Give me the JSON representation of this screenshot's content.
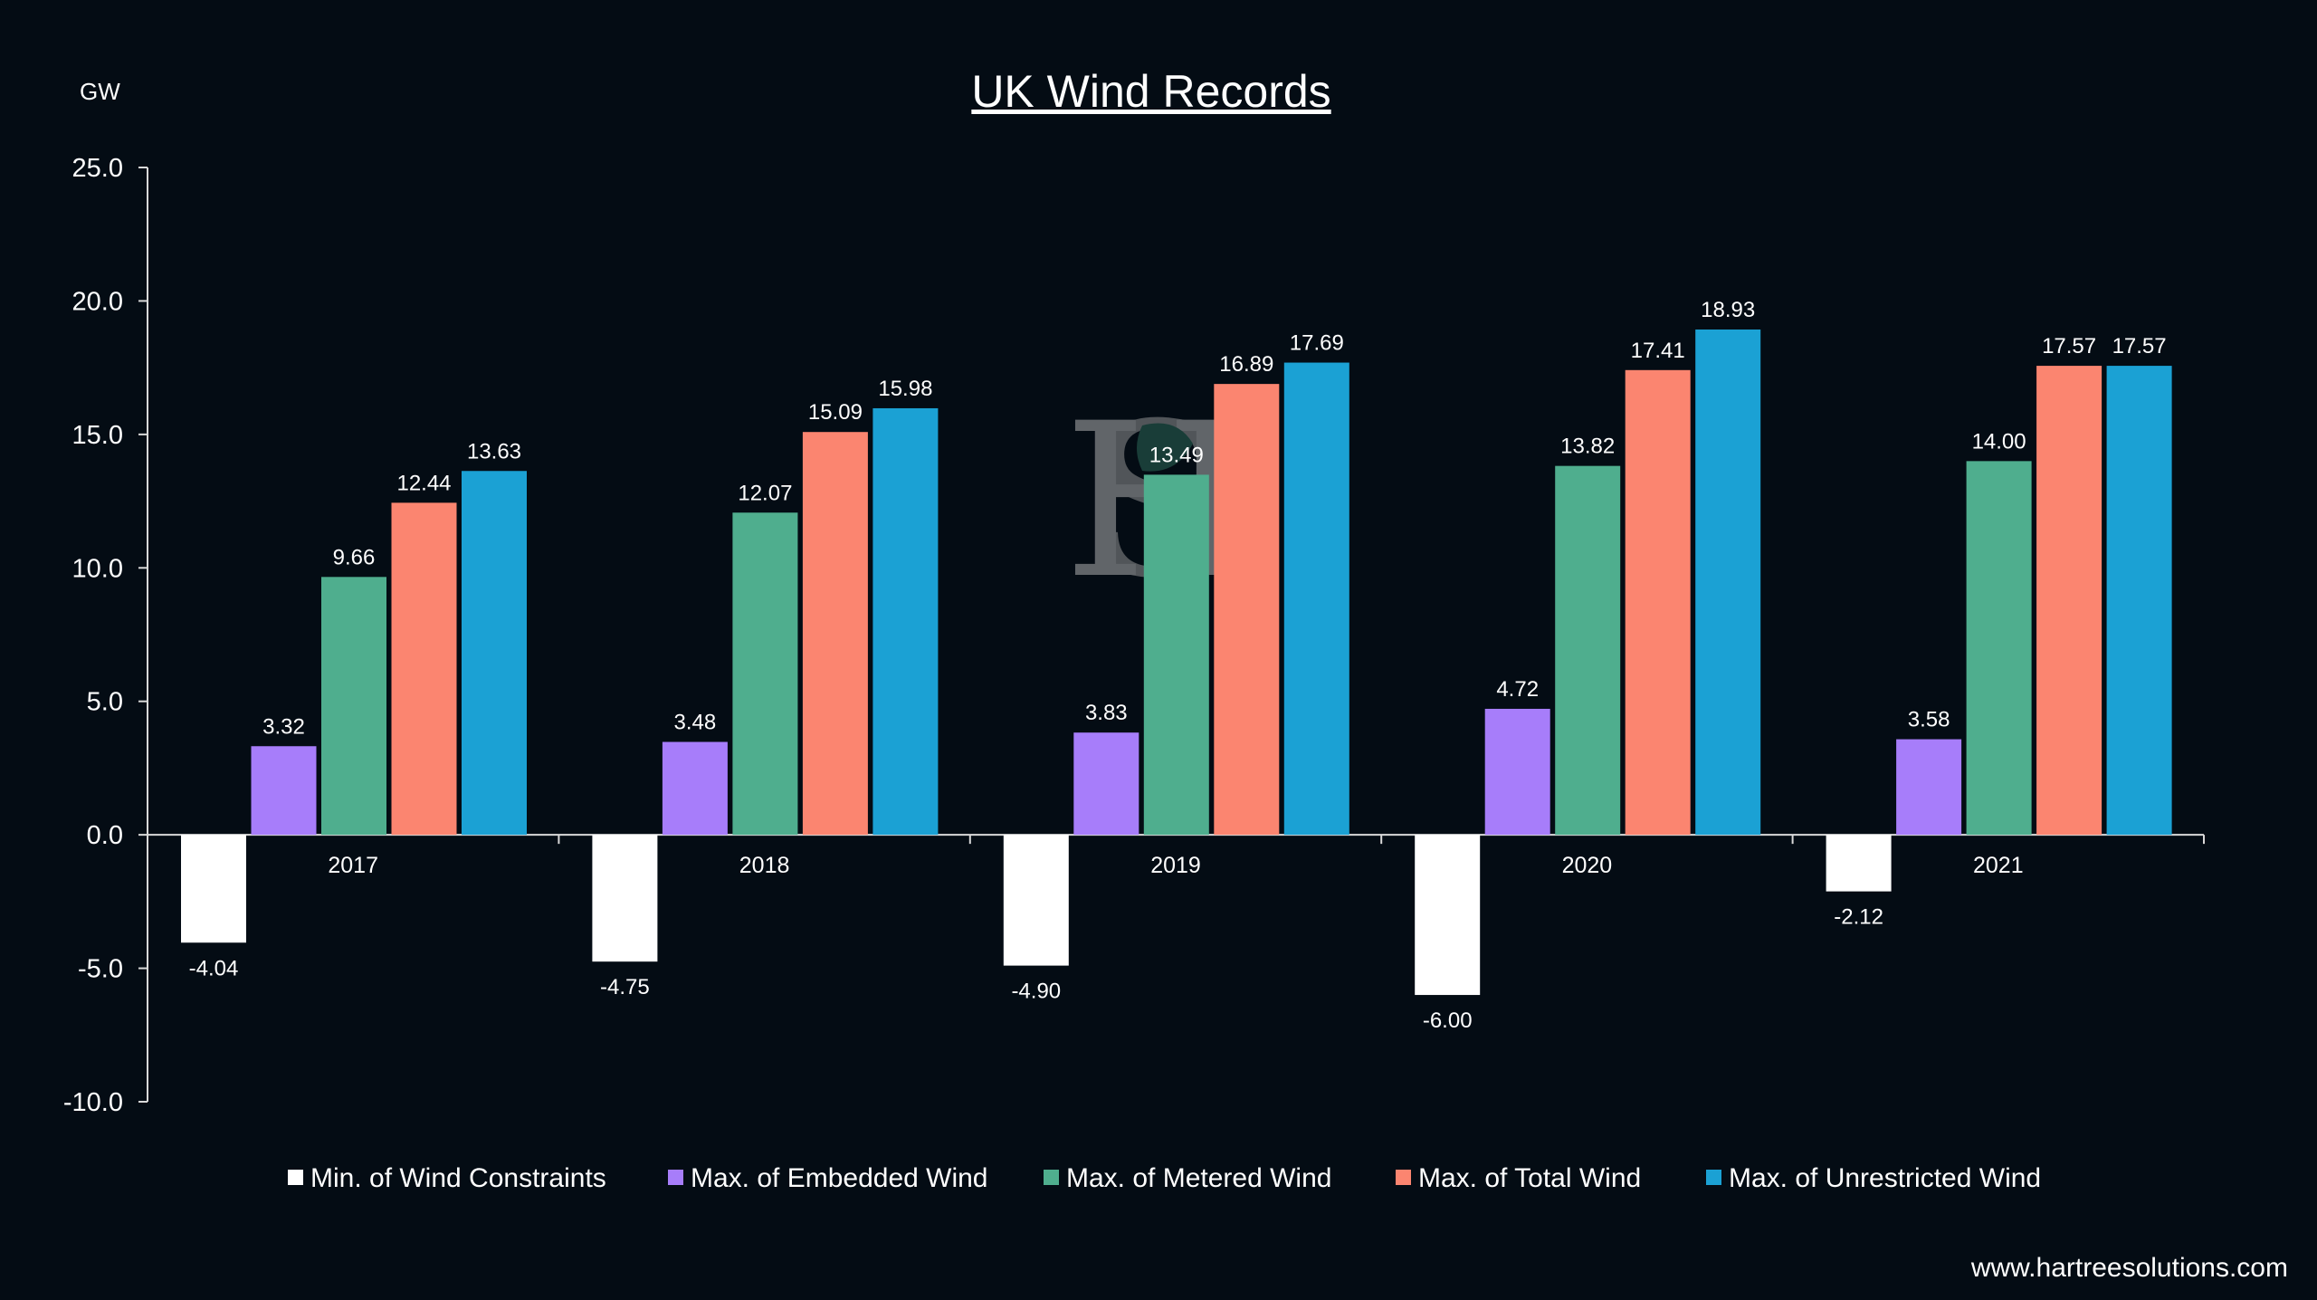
{
  "chart_data": {
    "type": "bar",
    "title": "UK Wind Records",
    "unit_label": "GW",
    "categories": [
      "2017",
      "2018",
      "2019",
      "2020",
      "2021"
    ],
    "series": [
      {
        "name": "Min. of Wind Constraints",
        "color": "#ffffff",
        "values": [
          -4.04,
          -4.75,
          -4.9,
          -6.0,
          -2.12
        ],
        "labels": [
          "-4.04",
          "-4.75",
          "-4.90",
          "-6.00",
          "-2.12"
        ]
      },
      {
        "name": "Max. of Embedded Wind",
        "color": "#a77dfa",
        "values": [
          3.32,
          3.48,
          3.83,
          4.72,
          3.58
        ],
        "labels": [
          "3.32",
          "3.48",
          "3.83",
          "4.72",
          "3.58"
        ]
      },
      {
        "name": "Max. of Metered Wind",
        "color": "#4fae8e",
        "values": [
          9.66,
          12.07,
          13.49,
          13.82,
          14.0
        ],
        "labels": [
          "9.66",
          "12.07",
          "13.49",
          "13.82",
          "14.00"
        ]
      },
      {
        "name": "Max. of Total Wind",
        "color": "#fb8570",
        "values": [
          12.44,
          15.09,
          16.89,
          17.41,
          17.57
        ],
        "labels": [
          "12.44",
          "15.09",
          "16.89",
          "17.41",
          "17.57"
        ]
      },
      {
        "name": "Max. of Unrestricted Wind",
        "color": "#1ba1d4",
        "values": [
          13.63,
          15.98,
          17.69,
          18.93,
          17.57
        ],
        "labels": [
          "13.63",
          "15.98",
          "17.69",
          "18.93",
          "17.57"
        ]
      }
    ],
    "ylim": [
      -10,
      25
    ],
    "yticks": [
      -10,
      -5,
      0,
      5,
      10,
      15,
      20,
      25
    ],
    "ytick_labels": [
      "-10.0",
      "-5.0",
      "0.0",
      "5.0",
      "10.0",
      "15.0",
      "20.0",
      "25.0"
    ],
    "grid": false,
    "legend_position": "bottom"
  },
  "footer": {
    "website": "www.hartreesolutions.com"
  },
  "watermark": {
    "icon": "hs-monogram-logo"
  }
}
